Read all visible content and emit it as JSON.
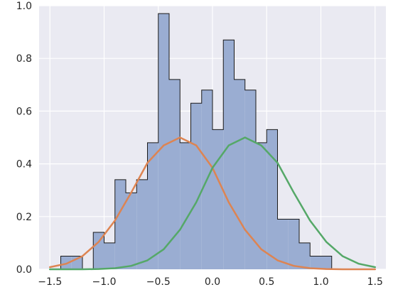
{
  "chart_data": {
    "type": "bar",
    "title": "",
    "xlabel": "",
    "ylabel": "",
    "xlim": [
      -1.6,
      1.6
    ],
    "ylim": [
      0,
      1.0
    ],
    "grid": true,
    "x_ticks": [
      -1.5,
      -1.0,
      -0.5,
      0.0,
      0.5,
      1.0,
      1.5
    ],
    "x_tick_labels": [
      "−1.5",
      "−1.0",
      "−0.5",
      "0.0",
      "0.5",
      "1.0",
      "1.5"
    ],
    "y_ticks": [
      0.0,
      0.2,
      0.4,
      0.6,
      0.8,
      1.0
    ],
    "y_tick_labels": [
      "0.0",
      "0.2",
      "0.4",
      "0.6",
      "0.8",
      "1.0"
    ],
    "histogram": {
      "style": "step-filled",
      "fill_color": "#9aadd2",
      "edge_color": "#1a1a1a",
      "bin_edges": [
        -1.4,
        -1.3,
        -1.2,
        -1.1,
        -1.0,
        -0.9,
        -0.8,
        -0.7,
        -0.6,
        -0.5,
        -0.4,
        -0.3,
        -0.2,
        -0.1,
        0.0,
        0.1,
        0.2,
        0.3,
        0.4,
        0.5,
        0.6,
        0.7,
        0.8,
        0.9,
        1.0,
        1.1,
        1.2
      ],
      "values": [
        0.05,
        0.05,
        0.0,
        0.14,
        0.1,
        0.34,
        0.29,
        0.34,
        0.48,
        0.97,
        0.72,
        0.48,
        0.63,
        0.68,
        0.53,
        0.87,
        0.72,
        0.68,
        0.48,
        0.53,
        0.19,
        0.19,
        0.1,
        0.05,
        0.05,
        0.0
      ]
    },
    "series": [
      {
        "type": "line",
        "color": "#dd8452",
        "x": [
          -1.5,
          -1.35,
          -1.2,
          -1.05,
          -0.9,
          -0.75,
          -0.6,
          -0.45,
          -0.3,
          -0.15,
          0.0,
          0.15,
          0.3,
          0.45,
          0.6,
          0.75,
          0.9,
          1.05,
          1.2,
          1.35,
          1.5
        ],
        "y": [
          0.008,
          0.021,
          0.05,
          0.104,
          0.185,
          0.291,
          0.404,
          0.47,
          0.5,
          0.47,
          0.385,
          0.254,
          0.15,
          0.076,
          0.034,
          0.013,
          0.004,
          0.001,
          0.0,
          0.0,
          0.0
        ]
      },
      {
        "type": "line",
        "color": "#55a868",
        "x": [
          -1.5,
          -1.35,
          -1.2,
          -1.05,
          -0.9,
          -0.75,
          -0.6,
          -0.45,
          -0.3,
          -0.15,
          0.0,
          0.15,
          0.3,
          0.45,
          0.6,
          0.75,
          0.9,
          1.05,
          1.2,
          1.35,
          1.5
        ],
        "y": [
          0.0,
          0.0,
          0.0,
          0.001,
          0.004,
          0.013,
          0.034,
          0.076,
          0.15,
          0.254,
          0.385,
          0.47,
          0.5,
          0.47,
          0.404,
          0.291,
          0.185,
          0.104,
          0.05,
          0.021,
          0.008
        ]
      }
    ]
  }
}
